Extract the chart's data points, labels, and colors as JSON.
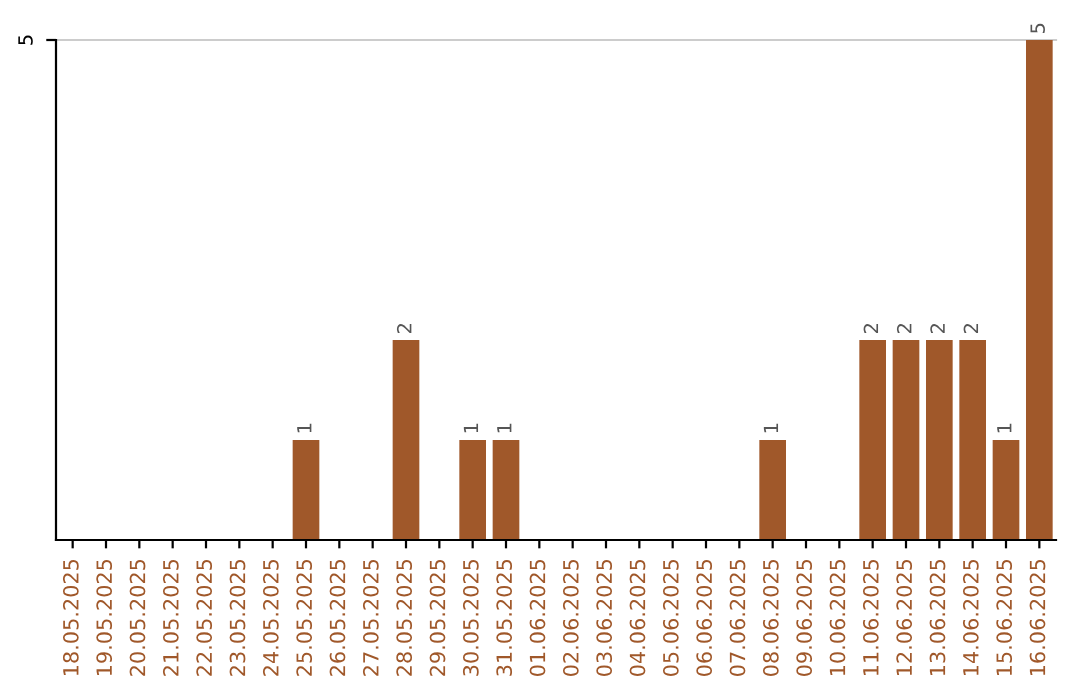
{
  "chart_data": {
    "type": "bar",
    "categories": [
      "18.05.2025",
      "19.05.2025",
      "20.05.2025",
      "21.05.2025",
      "22.05.2025",
      "23.05.2025",
      "24.05.2025",
      "25.05.2025",
      "26.05.2025",
      "27.05.2025",
      "28.05.2025",
      "29.05.2025",
      "30.05.2025",
      "31.05.2025",
      "01.06.2025",
      "02.06.2025",
      "03.06.2025",
      "04.06.2025",
      "05.06.2025",
      "06.06.2025",
      "07.06.2025",
      "08.06.2025",
      "09.06.2025",
      "10.06.2025",
      "11.06.2025",
      "12.06.2025",
      "13.06.2025",
      "14.06.2025",
      "15.06.2025",
      "16.06.2025"
    ],
    "values": [
      0,
      0,
      0,
      0,
      0,
      0,
      0,
      1,
      0,
      0,
      2,
      0,
      1,
      1,
      0,
      0,
      0,
      0,
      0,
      0,
      0,
      1,
      0,
      0,
      2,
      2,
      2,
      2,
      1,
      5
    ],
    "value_labels": [
      null,
      null,
      null,
      null,
      null,
      null,
      null,
      "1",
      null,
      null,
      "2",
      null,
      "1",
      "1",
      null,
      null,
      null,
      null,
      null,
      null,
      null,
      "1",
      null,
      null,
      "2",
      "2",
      "2",
      "2",
      "1",
      "5"
    ],
    "color": "#a0582a",
    "ylim": [
      0,
      5
    ],
    "yticks": [
      5
    ],
    "ref_lines": [
      {
        "axis": "y",
        "value": 5,
        "color": "#cccccc"
      }
    ]
  }
}
